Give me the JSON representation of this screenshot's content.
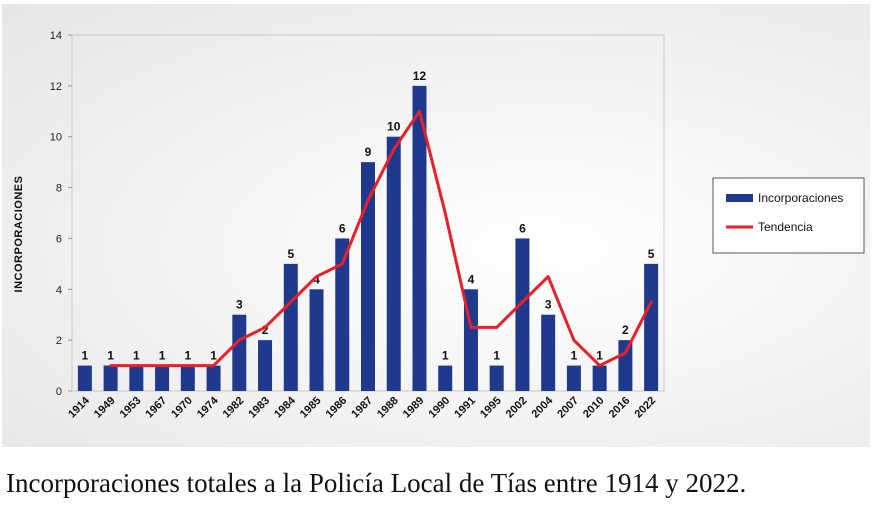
{
  "caption": "Incorporaciones totales a la Policía Local de Tías entre 1914 y 2022.",
  "chart_data": {
    "type": "bar",
    "ylabel": "INCORPORACIONES",
    "xlabel": "",
    "ylim": [
      0,
      14
    ],
    "yticks": [
      0,
      2,
      4,
      6,
      8,
      10,
      12,
      14
    ],
    "grid": false,
    "legend_position": "right",
    "categories": [
      "1914",
      "1949",
      "1953",
      "1967",
      "1970",
      "1974",
      "1982",
      "1983",
      "1984",
      "1985",
      "1986",
      "1987",
      "1988",
      "1989",
      "1990",
      "1991",
      "1995",
      "2002",
      "2004",
      "2007",
      "2010",
      "2016",
      "2022"
    ],
    "series": [
      {
        "name": "Incorporaciones",
        "type": "bar",
        "color": "#1f3a8c",
        "values": [
          1,
          1,
          1,
          1,
          1,
          1,
          3,
          2,
          5,
          4,
          6,
          9,
          10,
          12,
          1,
          4,
          1,
          6,
          3,
          1,
          1,
          2,
          5
        ]
      },
      {
        "name": "Tendencia",
        "type": "line",
        "color": "#e8202a",
        "values": [
          null,
          1,
          1,
          1,
          1,
          1,
          2,
          2.5,
          3.5,
          4.5,
          5,
          7.5,
          9.5,
          11,
          7,
          2.5,
          2.5,
          3.5,
          4.5,
          2,
          1,
          1.5,
          3.5
        ]
      }
    ]
  }
}
